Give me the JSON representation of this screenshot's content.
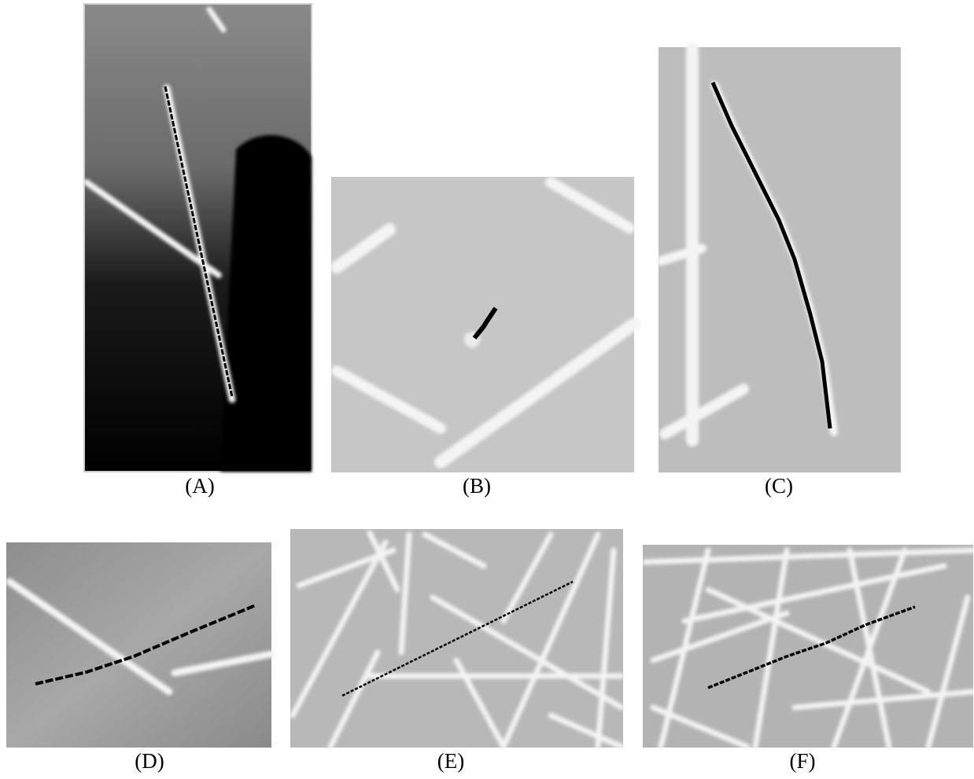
{
  "panels": [
    {
      "label": "(A)"
    },
    {
      "label": "(B)"
    },
    {
      "label": "(C)"
    },
    {
      "label": "(D)"
    },
    {
      "label": "(E)"
    },
    {
      "label": "(F)"
    }
  ]
}
